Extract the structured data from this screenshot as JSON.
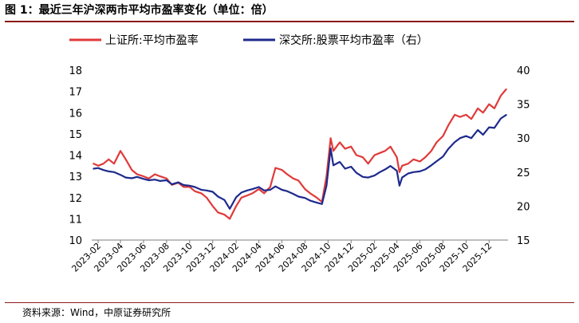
{
  "figure": {
    "title": "图 1：最近三年沪深两市平均市盈率变化（单位：倍）",
    "source": "资料来源：Wind，中原证券研究所"
  },
  "colors": {
    "sh": "#e03a3a",
    "sz": "#1e2a8c",
    "rule": "#8b1a1a"
  },
  "chart_data": {
    "type": "line",
    "title": "最近三年沪深两市平均市盈率变化（单位：倍）",
    "xlabel": "",
    "ylabel": "",
    "y_left_lim": [
      10,
      18
    ],
    "y_right_lim": [
      15,
      40
    ],
    "y_left_ticks": [
      "10",
      "11",
      "12",
      "13",
      "14",
      "15",
      "16",
      "17",
      "18"
    ],
    "y_right_ticks": [
      "15",
      "20",
      "25",
      "30",
      "35",
      "40"
    ],
    "x_tick_labels": [
      "2023-02",
      "2023-04",
      "2023-06",
      "2023-08",
      "2023-10",
      "2023-12",
      "2024-02",
      "2024-04",
      "2024-06",
      "2024-08",
      "2024-10",
      "2024-12",
      "2025-02",
      "2025-04",
      "2025-06",
      "2025-08",
      "2025-10",
      "2025-12"
    ],
    "legend_position": "top",
    "grid": false,
    "series": [
      {
        "name": "上证所:平均市盈率",
        "axis": "left",
        "x": [
          "2023-01-20",
          "2023-02-01",
          "2023-02-15",
          "2023-03-01",
          "2023-03-15",
          "2023-04-01",
          "2023-04-15",
          "2023-05-01",
          "2023-05-15",
          "2023-06-01",
          "2023-06-15",
          "2023-07-01",
          "2023-07-15",
          "2023-08-01",
          "2023-08-15",
          "2023-09-01",
          "2023-09-15",
          "2023-10-01",
          "2023-10-15",
          "2023-11-01",
          "2023-11-15",
          "2023-12-01",
          "2023-12-15",
          "2024-01-01",
          "2024-01-15",
          "2024-02-01",
          "2024-02-15",
          "2024-03-01",
          "2024-03-15",
          "2024-04-01",
          "2024-04-15",
          "2024-05-01",
          "2024-05-15",
          "2024-06-01",
          "2024-06-15",
          "2024-07-01",
          "2024-07-15",
          "2024-08-01",
          "2024-08-15",
          "2024-09-01",
          "2024-09-15",
          "2024-09-27",
          "2024-10-08",
          "2024-10-15",
          "2024-11-01",
          "2024-11-15",
          "2024-12-01",
          "2024-12-15",
          "2025-01-01",
          "2025-01-15",
          "2025-02-01",
          "2025-02-15",
          "2025-03-01",
          "2025-03-15",
          "2025-04-01",
          "2025-04-08",
          "2025-04-15",
          "2025-05-01",
          "2025-05-15",
          "2025-06-01",
          "2025-06-15",
          "2025-07-01",
          "2025-07-15",
          "2025-08-01",
          "2025-08-15",
          "2025-09-01",
          "2025-09-15",
          "2025-10-01",
          "2025-10-15",
          "2025-11-01",
          "2025-11-15",
          "2025-12-01",
          "2025-12-15",
          "2026-01-01",
          "2026-01-15"
        ],
        "values": [
          13.6,
          13.5,
          13.6,
          13.8,
          13.6,
          14.2,
          13.8,
          13.3,
          13.1,
          13.0,
          12.9,
          13.1,
          13.0,
          12.9,
          12.6,
          12.7,
          12.5,
          12.5,
          12.3,
          12.2,
          12.0,
          11.6,
          11.3,
          11.2,
          11.0,
          11.6,
          12.0,
          12.1,
          12.2,
          12.4,
          12.2,
          12.5,
          13.4,
          13.3,
          13.1,
          12.9,
          12.8,
          12.4,
          12.2,
          12.0,
          11.8,
          13.0,
          14.8,
          14.2,
          14.6,
          14.3,
          14.4,
          14.0,
          13.9,
          13.6,
          14.0,
          14.1,
          14.2,
          14.4,
          13.9,
          13.2,
          13.5,
          13.6,
          13.8,
          13.7,
          13.9,
          14.2,
          14.6,
          14.9,
          15.4,
          15.9,
          15.8,
          15.9,
          15.7,
          16.2,
          16.0,
          16.4,
          16.2,
          16.8,
          17.1
        ]
      },
      {
        "name": "深交所:股票平均市盈率（右）",
        "axis": "right",
        "x": [
          "2023-01-20",
          "2023-02-01",
          "2023-02-15",
          "2023-03-01",
          "2023-03-15",
          "2023-04-01",
          "2023-04-15",
          "2023-05-01",
          "2023-05-15",
          "2023-06-01",
          "2023-06-15",
          "2023-07-01",
          "2023-07-15",
          "2023-08-01",
          "2023-08-15",
          "2023-09-01",
          "2023-09-15",
          "2023-10-01",
          "2023-10-15",
          "2023-11-01",
          "2023-11-15",
          "2023-12-01",
          "2023-12-15",
          "2024-01-01",
          "2024-01-15",
          "2024-02-01",
          "2024-02-15",
          "2024-03-01",
          "2024-03-15",
          "2024-04-01",
          "2024-04-15",
          "2024-05-01",
          "2024-05-15",
          "2024-06-01",
          "2024-06-15",
          "2024-07-01",
          "2024-07-15",
          "2024-08-01",
          "2024-08-15",
          "2024-09-01",
          "2024-09-15",
          "2024-09-27",
          "2024-10-08",
          "2024-10-15",
          "2024-11-01",
          "2024-11-15",
          "2024-12-01",
          "2024-12-15",
          "2025-01-01",
          "2025-01-15",
          "2025-02-01",
          "2025-02-15",
          "2025-03-01",
          "2025-03-15",
          "2025-04-01",
          "2025-04-08",
          "2025-04-15",
          "2025-05-01",
          "2025-05-15",
          "2025-06-01",
          "2025-06-15",
          "2025-07-01",
          "2025-07-15",
          "2025-08-01",
          "2025-08-15",
          "2025-09-01",
          "2025-09-15",
          "2025-10-01",
          "2025-10-15",
          "2025-11-01",
          "2025-11-15",
          "2025-12-01",
          "2025-12-15",
          "2026-01-01",
          "2026-01-15"
        ],
        "values": [
          25.5,
          25.6,
          25.3,
          25.1,
          25.0,
          24.6,
          24.2,
          24.1,
          24.3,
          24.0,
          23.8,
          23.9,
          23.7,
          23.8,
          23.2,
          23.5,
          23.1,
          23.0,
          22.8,
          22.4,
          22.3,
          22.1,
          21.4,
          20.9,
          19.6,
          21.3,
          22.0,
          22.3,
          22.5,
          22.8,
          22.3,
          22.4,
          22.9,
          22.4,
          22.2,
          21.8,
          21.4,
          21.2,
          20.8,
          20.5,
          20.3,
          23.0,
          28.5,
          26.0,
          26.5,
          25.5,
          25.8,
          24.9,
          24.3,
          24.2,
          24.5,
          25.0,
          25.4,
          25.9,
          25.2,
          23.0,
          24.2,
          24.8,
          25.0,
          25.1,
          25.4,
          26.0,
          26.6,
          27.3,
          28.4,
          29.4,
          30.0,
          30.3,
          30.0,
          31.2,
          30.5,
          31.6,
          31.5,
          32.9,
          33.4
        ]
      }
    ]
  }
}
